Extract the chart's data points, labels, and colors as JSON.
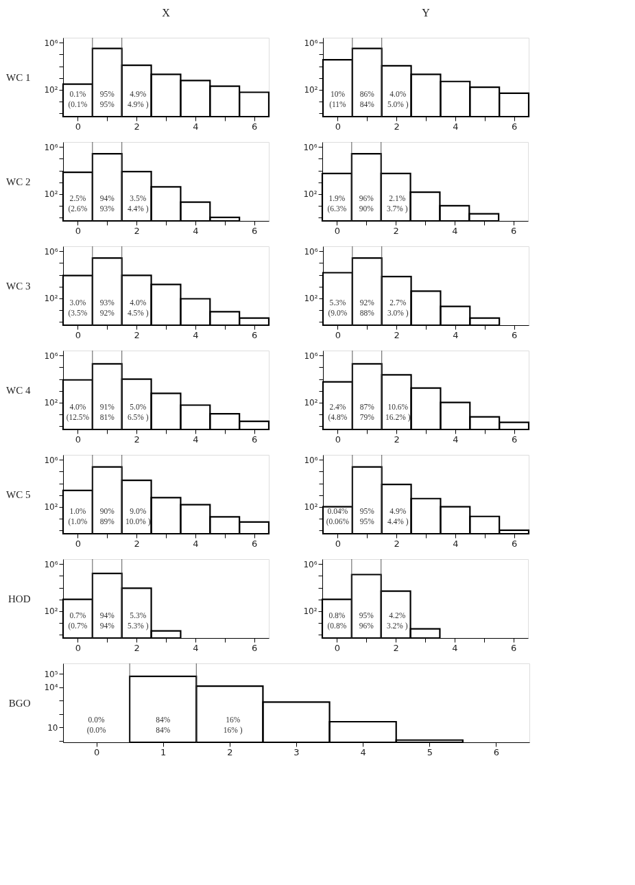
{
  "chart_data": [
    {
      "type": "histogram",
      "title": "X",
      "ylabel": "WC 1",
      "bins": [
        -0.5,
        0.5,
        1.5,
        2.5,
        3.5,
        4.5,
        5.5,
        6.5
      ],
      "values": [
        300,
        330000,
        12000,
        2000,
        600,
        200,
        60
      ],
      "color": "#000000",
      "log": true,
      "ylim": [
        0.5,
        2700000
      ],
      "yticks": [
        {
          "value": 1000000,
          "label": "10⁶"
        },
        {
          "value": 100000,
          "label": null
        },
        {
          "value": 10000,
          "label": null
        },
        {
          "value": 1000,
          "label": null
        },
        {
          "value": 100,
          "label": "10²"
        },
        {
          "value": 10,
          "label": null
        },
        {
          "value": 1,
          "label": null
        }
      ],
      "xlim": [
        -0.5,
        6.5
      ],
      "xticks": [
        0,
        {
          "value": 1,
          "label": null
        },
        2,
        {
          "value": 3,
          "label": null
        },
        4,
        {
          "value": 5,
          "label": null
        },
        6
      ],
      "ref_lines": [
        {
          "axis": "x",
          "value": 0.5
        },
        {
          "axis": "x",
          "value": 1.5
        }
      ],
      "annotations": [
        "0.1%",
        "95%",
        "4.9%",
        "(0.1%",
        "95%",
        "4.9% )"
      ],
      "grid": false
    },
    {
      "type": "histogram",
      "title": "Y",
      "bins": [
        -0.5,
        0.5,
        1.5,
        2.5,
        3.5,
        4.5,
        5.5,
        6.5
      ],
      "values": [
        36000,
        330000,
        11000,
        2000,
        500,
        160,
        50
      ],
      "color": "#000000",
      "log": true,
      "ylim": [
        0.5,
        2700000
      ],
      "yticks": [
        {
          "value": 1000000,
          "label": "10⁶"
        },
        {
          "value": 100000,
          "label": null
        },
        {
          "value": 10000,
          "label": null
        },
        {
          "value": 1000,
          "label": null
        },
        {
          "value": 100,
          "label": "10²"
        },
        {
          "value": 10,
          "label": null
        },
        {
          "value": 1,
          "label": null
        }
      ],
      "xlim": [
        -0.5,
        6.5
      ],
      "xticks": [
        0,
        {
          "value": 1,
          "label": null
        },
        2,
        {
          "value": 3,
          "label": null
        },
        4,
        {
          "value": 5,
          "label": null
        },
        6
      ],
      "ref_lines": [
        {
          "axis": "x",
          "value": 0.5
        },
        {
          "axis": "x",
          "value": 1.5
        }
      ],
      "annotations": [
        "10%",
        "86%",
        "4.0%",
        "(11%",
        "84%",
        "5.0% )"
      ],
      "grid": false
    },
    {
      "type": "histogram",
      "ylabel": "WC 2",
      "bins": [
        -0.5,
        0.5,
        1.5,
        2.5,
        3.5,
        4.5,
        5.5,
        6.5
      ],
      "values": [
        7000,
        270000,
        8000,
        400,
        20,
        1,
        null
      ],
      "color": "#000000",
      "log": true,
      "ylim": [
        0.5,
        2700000
      ],
      "yticks": [
        {
          "value": 1000000,
          "label": "10⁶"
        },
        {
          "value": 100000,
          "label": null
        },
        {
          "value": 10000,
          "label": null
        },
        {
          "value": 1000,
          "label": null
        },
        {
          "value": 100,
          "label": "10²"
        },
        {
          "value": 10,
          "label": null
        },
        {
          "value": 1,
          "label": null
        }
      ],
      "xlim": [
        -0.5,
        6.5
      ],
      "xticks": [
        0,
        {
          "value": 1,
          "label": null
        },
        2,
        {
          "value": 3,
          "label": null
        },
        4,
        {
          "value": 5,
          "label": null
        },
        6
      ],
      "ref_lines": [
        {
          "axis": "x",
          "value": 0.5
        },
        {
          "axis": "x",
          "value": 1.5
        }
      ],
      "annotations": [
        "2.5%",
        "94%",
        "3.5%",
        "(2.6%",
        "93%",
        "4.4% )"
      ],
      "grid": false
    },
    {
      "type": "histogram",
      "bins": [
        -0.5,
        0.5,
        1.5,
        2.5,
        3.5,
        4.5,
        5.5,
        6.5
      ],
      "values": [
        5500,
        270000,
        5500,
        140,
        10,
        2,
        null
      ],
      "color": "#000000",
      "log": true,
      "ylim": [
        0.5,
        2700000
      ],
      "yticks": [
        {
          "value": 1000000,
          "label": "10⁶"
        },
        {
          "value": 100000,
          "label": null
        },
        {
          "value": 10000,
          "label": null
        },
        {
          "value": 1000,
          "label": null
        },
        {
          "value": 100,
          "label": "10²"
        },
        {
          "value": 10,
          "label": null
        },
        {
          "value": 1,
          "label": null
        }
      ],
      "xlim": [
        -0.5,
        6.5
      ],
      "xticks": [
        0,
        {
          "value": 1,
          "label": null
        },
        2,
        {
          "value": 3,
          "label": null
        },
        4,
        {
          "value": 5,
          "label": null
        },
        6
      ],
      "ref_lines": [
        {
          "axis": "x",
          "value": 0.5
        },
        {
          "axis": "x",
          "value": 1.5
        }
      ],
      "annotations": [
        "1.9%",
        "96%",
        "2.1%",
        "(6.3%",
        "90%",
        "3.7% )"
      ],
      "grid": false
    },
    {
      "type": "histogram",
      "ylabel": "WC 3",
      "bins": [
        -0.5,
        0.5,
        1.5,
        2.5,
        3.5,
        4.5,
        5.5,
        6.5
      ],
      "values": [
        8700,
        270000,
        9000,
        1500,
        90,
        7,
        2
      ],
      "color": "#000000",
      "log": true,
      "ylim": [
        0.5,
        2700000
      ],
      "yticks": [
        {
          "value": 1000000,
          "label": "10⁶"
        },
        {
          "value": 100000,
          "label": null
        },
        {
          "value": 10000,
          "label": null
        },
        {
          "value": 1000,
          "label": null
        },
        {
          "value": 100,
          "label": "10²"
        },
        {
          "value": 10,
          "label": null
        },
        {
          "value": 1,
          "label": null
        }
      ],
      "xlim": [
        -0.5,
        6.5
      ],
      "xticks": [
        0,
        {
          "value": 1,
          "label": null
        },
        2,
        {
          "value": 3,
          "label": null
        },
        4,
        {
          "value": 5,
          "label": null
        },
        6
      ],
      "ref_lines": [
        {
          "axis": "x",
          "value": 0.5
        },
        {
          "axis": "x",
          "value": 1.5
        }
      ],
      "annotations": [
        "3.0%",
        "93%",
        "4.0%",
        "(3.5%",
        "92%",
        "4.5% )"
      ],
      "grid": false
    },
    {
      "type": "histogram",
      "bins": [
        -0.5,
        0.5,
        1.5,
        2.5,
        3.5,
        4.5,
        5.5,
        6.5
      ],
      "values": [
        15000,
        270000,
        7000,
        400,
        20,
        2,
        null
      ],
      "color": "#000000",
      "log": true,
      "ylim": [
        0.5,
        2700000
      ],
      "yticks": [
        {
          "value": 1000000,
          "label": "10⁶"
        },
        {
          "value": 100000,
          "label": null
        },
        {
          "value": 10000,
          "label": null
        },
        {
          "value": 1000,
          "label": null
        },
        {
          "value": 100,
          "label": "10²"
        },
        {
          "value": 10,
          "label": null
        },
        {
          "value": 1,
          "label": null
        }
      ],
      "xlim": [
        -0.5,
        6.5
      ],
      "xticks": [
        0,
        {
          "value": 1,
          "label": null
        },
        2,
        {
          "value": 3,
          "label": null
        },
        4,
        {
          "value": 5,
          "label": null
        },
        6
      ],
      "ref_lines": [
        {
          "axis": "x",
          "value": 0.5
        },
        {
          "axis": "x",
          "value": 1.5
        }
      ],
      "annotations": [
        "5.3%",
        "92%",
        "2.7%",
        "(9.0%",
        "88%",
        "3.0% )"
      ],
      "grid": false
    },
    {
      "type": "histogram",
      "ylabel": "WC 4",
      "bins": [
        -0.5,
        0.5,
        1.5,
        2.5,
        3.5,
        4.5,
        5.5,
        6.5
      ],
      "values": [
        8500,
        200000,
        10000,
        600,
        60,
        11,
        2.5
      ],
      "color": "#000000",
      "log": true,
      "ylim": [
        0.5,
        2700000
      ],
      "yticks": [
        {
          "value": 1000000,
          "label": "10⁶"
        },
        {
          "value": 100000,
          "label": null
        },
        {
          "value": 10000,
          "label": null
        },
        {
          "value": 1000,
          "label": null
        },
        {
          "value": 100,
          "label": "10²"
        },
        {
          "value": 10,
          "label": null
        },
        {
          "value": 1,
          "label": null
        }
      ],
      "xlim": [
        -0.5,
        6.5
      ],
      "xticks": [
        0,
        {
          "value": 1,
          "label": null
        },
        2,
        {
          "value": 3,
          "label": null
        },
        4,
        {
          "value": 5,
          "label": null
        },
        6
      ],
      "ref_lines": [
        {
          "axis": "x",
          "value": 0.5
        },
        {
          "axis": "x",
          "value": 1.5
        }
      ],
      "annotations": [
        "4.0%",
        "91%",
        "5.0%",
        "(12.5%",
        "81%",
        "6.5% )"
      ],
      "grid": false
    },
    {
      "type": "histogram",
      "bins": [
        -0.5,
        0.5,
        1.5,
        2.5,
        3.5,
        4.5,
        5.5,
        6.5
      ],
      "values": [
        5700,
        200000,
        23000,
        1700,
        100,
        6,
        2
      ],
      "color": "#000000",
      "log": true,
      "ylim": [
        0.5,
        2700000
      ],
      "yticks": [
        {
          "value": 1000000,
          "label": "10⁶"
        },
        {
          "value": 100000,
          "label": null
        },
        {
          "value": 10000,
          "label": null
        },
        {
          "value": 1000,
          "label": null
        },
        {
          "value": 100,
          "label": "10²"
        },
        {
          "value": 10,
          "label": null
        },
        {
          "value": 1,
          "label": null
        }
      ],
      "xlim": [
        -0.5,
        6.5
      ],
      "xticks": [
        0,
        {
          "value": 1,
          "label": null
        },
        2,
        {
          "value": 3,
          "label": null
        },
        4,
        {
          "value": 5,
          "label": null
        },
        6
      ],
      "ref_lines": [
        {
          "axis": "x",
          "value": 0.5
        },
        {
          "axis": "x",
          "value": 1.5
        }
      ],
      "annotations": [
        "2.4%",
        "87%",
        "10.6%",
        "(4.8%",
        "79%",
        "16.2% )"
      ],
      "grid": false
    },
    {
      "type": "histogram",
      "ylabel": "WC 5",
      "bins": [
        -0.5,
        0.5,
        1.5,
        2.5,
        3.5,
        4.5,
        5.5,
        6.5
      ],
      "values": [
        2500,
        250000,
        18000,
        600,
        150,
        14,
        5
      ],
      "color": "#000000",
      "log": true,
      "ylim": [
        0.5,
        2700000
      ],
      "yticks": [
        {
          "value": 1000000,
          "label": "10⁶"
        },
        {
          "value": 100000,
          "label": null
        },
        {
          "value": 10000,
          "label": null
        },
        {
          "value": 1000,
          "label": null
        },
        {
          "value": 100,
          "label": "10²"
        },
        {
          "value": 10,
          "label": null
        },
        {
          "value": 1,
          "label": null
        }
      ],
      "xlim": [
        -0.5,
        6.5
      ],
      "xticks": [
        0,
        {
          "value": 1,
          "label": null
        },
        2,
        {
          "value": 3,
          "label": null
        },
        4,
        {
          "value": 5,
          "label": null
        },
        6
      ],
      "ref_lines": [
        {
          "axis": "x",
          "value": 0.5
        },
        {
          "axis": "x",
          "value": 1.5
        }
      ],
      "annotations": [
        "1.0%",
        "90%",
        "9.0%",
        "(1.0%",
        "89%",
        "10.0% )"
      ],
      "grid": false
    },
    {
      "type": "histogram",
      "bins": [
        -0.5,
        0.5,
        1.5,
        2.5,
        3.5,
        4.5,
        5.5,
        6.5
      ],
      "values": [
        100,
        250000,
        8000,
        500,
        100,
        15,
        1
      ],
      "color": "#000000",
      "log": true,
      "ylim": [
        0.5,
        2700000
      ],
      "yticks": [
        {
          "value": 1000000,
          "label": "10⁶"
        },
        {
          "value": 100000,
          "label": null
        },
        {
          "value": 10000,
          "label": null
        },
        {
          "value": 1000,
          "label": null
        },
        {
          "value": 100,
          "label": "10²"
        },
        {
          "value": 10,
          "label": null
        },
        {
          "value": 1,
          "label": null
        }
      ],
      "xlim": [
        -0.5,
        6.5
      ],
      "xticks": [
        0,
        {
          "value": 1,
          "label": null
        },
        2,
        {
          "value": 3,
          "label": null
        },
        4,
        {
          "value": 5,
          "label": null
        },
        6
      ],
      "ref_lines": [
        {
          "axis": "x",
          "value": 0.5
        },
        {
          "axis": "x",
          "value": 1.5
        }
      ],
      "annotations": [
        "0.04%",
        "95%",
        "4.9%",
        "(0.06%",
        "95%",
        "4.4% )"
      ],
      "grid": false
    },
    {
      "type": "histogram",
      "ylabel": "HOD",
      "bins": [
        -0.5,
        0.5,
        1.5,
        2.5,
        3.5,
        4.5,
        5.5,
        6.5
      ],
      "values": [
        1000,
        160000,
        9000,
        2,
        null,
        null,
        null
      ],
      "color": "#000000",
      "log": true,
      "ylim": [
        0.5,
        2700000
      ],
      "yticks": [
        {
          "value": 1000000,
          "label": "10⁶"
        },
        {
          "value": 100000,
          "label": null
        },
        {
          "value": 10000,
          "label": null
        },
        {
          "value": 1000,
          "label": null
        },
        {
          "value": 100,
          "label": "10²"
        },
        {
          "value": 10,
          "label": null
        },
        {
          "value": 1,
          "label": null
        }
      ],
      "xlim": [
        -0.5,
        6.5
      ],
      "xticks": [
        0,
        {
          "value": 1,
          "label": null
        },
        2,
        {
          "value": 3,
          "label": null
        },
        4,
        {
          "value": 5,
          "label": null
        },
        6
      ],
      "ref_lines": [
        {
          "axis": "x",
          "value": 0.5
        },
        {
          "axis": "x",
          "value": 1.5
        }
      ],
      "annotations": [
        "0.7%",
        "94%",
        "5.3%",
        "(0.7%",
        "94%",
        "5.3% )"
      ],
      "grid": false
    },
    {
      "type": "histogram",
      "bins": [
        -0.5,
        0.5,
        1.5,
        2.5,
        3.5,
        4.5,
        5.5,
        6.5
      ],
      "values": [
        1000,
        130000,
        5000,
        3,
        null,
        null,
        null
      ],
      "color": "#000000",
      "log": true,
      "ylim": [
        0.5,
        2700000
      ],
      "yticks": [
        {
          "value": 1000000,
          "label": "10⁶"
        },
        {
          "value": 100000,
          "label": null
        },
        {
          "value": 10000,
          "label": null
        },
        {
          "value": 1000,
          "label": null
        },
        {
          "value": 100,
          "label": "10²"
        },
        {
          "value": 10,
          "label": null
        },
        {
          "value": 1,
          "label": null
        }
      ],
      "xlim": [
        -0.5,
        6.5
      ],
      "xticks": [
        0,
        {
          "value": 1,
          "label": null
        },
        2,
        {
          "value": 3,
          "label": null
        },
        4,
        {
          "value": 5,
          "label": null
        },
        6
      ],
      "ref_lines": [
        {
          "axis": "x",
          "value": 0.5
        },
        {
          "axis": "x",
          "value": 1.5
        }
      ],
      "annotations": [
        "0.8%",
        "95%",
        "4.2%",
        "(0.8%",
        "96%",
        "3.2% )"
      ],
      "grid": false
    },
    {
      "type": "histogram",
      "ylabel": "BGO",
      "bins": [
        -0.5,
        0.5,
        1.5,
        2.5,
        3.5,
        4.5,
        5.5,
        6.5
      ],
      "values": [
        null,
        65000,
        12000,
        770,
        26,
        1.1,
        null
      ],
      "color": "#000000",
      "log": true,
      "ylim": [
        0.75,
        600000
      ],
      "yticks": [
        {
          "value": 100000,
          "label": "10⁵"
        },
        {
          "value": 10000,
          "label": "10⁴"
        },
        {
          "value": 1000,
          "label": null
        },
        {
          "value": 100,
          "label": null
        },
        10,
        {
          "value": 1,
          "label": null
        }
      ],
      "xlim": [
        -0.5,
        6.5
      ],
      "xticks": [
        0,
        1,
        2,
        3,
        4,
        5,
        6
      ],
      "ref_lines": [
        {
          "axis": "x",
          "value": 0.5
        },
        {
          "axis": "x",
          "value": 1.5
        }
      ],
      "annotations": [
        "0.0%",
        "84%",
        "16%",
        "(0.0%",
        "84%",
        "16% )"
      ],
      "grid": false
    }
  ]
}
